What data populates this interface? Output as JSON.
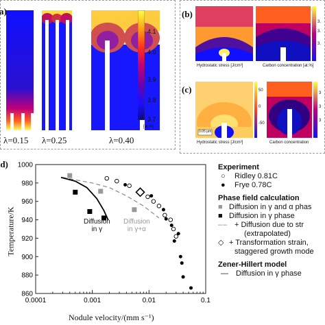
{
  "panel_a": {
    "label": "a)",
    "lambda_labels": [
      "λ=0.15",
      "λ=0.25",
      "λ=0.40"
    ],
    "colorbar": {
      "ticks": [
        "4.1",
        "4.0",
        "3.9",
        "3.8",
        "3.7"
      ],
      "unit": "[at.%]",
      "colors": [
        "#ffff40",
        "#ff9a10",
        "#ff2a20",
        "#c0007a",
        "#6a00b0",
        "#1a10ff",
        "#0a0a80"
      ]
    }
  },
  "panel_b": {
    "label": "(b)",
    "left_caption": "Hydrostatic stress  [J/cm³]",
    "right_caption": "Carbon concentration  [at.%]",
    "cb_ticks": [
      "3.",
      "3.",
      "3."
    ]
  },
  "panel_c": {
    "label": "(c)",
    "left_caption": "Hydrostatic stress  [J/cm³]",
    "right_caption": "Carbon concentration",
    "scale_bar": "0.05 µm",
    "cb_ticks": [
      "50",
      "0",
      "-50"
    ],
    "cb_ticks_right": [
      "3",
      "3",
      "3"
    ]
  },
  "panel_d": {
    "label": "(d)",
    "annotations": {
      "diffusion_gamma": [
        "Diffusion",
        "in γ"
      ],
      "diffusion_gamma_alpha": [
        "Diffusion",
        "in γ+α"
      ]
    },
    "legend": {
      "experiment_title": "Experiment",
      "ridley": "Ridley 0.81C",
      "frye": "Frye 0.78C",
      "pf_title": "Phase field calculation",
      "pf_gamma_alpha": "Diffusion in γ and α phas",
      "pf_gamma": "Diffusion in γ phase",
      "pf_stress_1": "+ Diffusion due to str",
      "pf_stress_2": "(extrapolated)",
      "pf_transform_1": "+ Transformation strain,",
      "pf_transform_2": "staggered growth mode",
      "zh_title": "Zener-Hillert model",
      "zh_gamma": "Diffusion in γ phase"
    }
  },
  "chart_data": {
    "type": "scatter",
    "xlabel": "Nodule velocity/(mm s⁻¹)",
    "ylabel": "Temperature/K",
    "xscale": "log",
    "xlim": [
      0.0001,
      0.1
    ],
    "ylim": [
      860,
      1000
    ],
    "xticks": [
      "0.0001",
      "0.001",
      "0.01",
      "0.1"
    ],
    "yticks": [
      "860",
      "880",
      "900",
      "920",
      "940",
      "960",
      "980",
      "1000"
    ],
    "series": [
      {
        "name": "Ridley 0.81C",
        "marker": "open-circle",
        "points": [
          [
            0.0018,
            985
          ],
          [
            0.0027,
            982
          ],
          [
            0.0045,
            977
          ],
          [
            0.0075,
            970
          ],
          [
            0.0095,
            965
          ],
          [
            0.012,
            960
          ],
          [
            0.015,
            955
          ],
          [
            0.019,
            945
          ],
          [
            0.024,
            940
          ],
          [
            0.027,
            930
          ],
          [
            0.03,
            922
          ]
        ]
      },
      {
        "name": "Frye 0.78C",
        "marker": "filled-circle",
        "points": [
          [
            0.0038,
            978
          ],
          [
            0.011,
            966
          ],
          [
            0.018,
            951
          ],
          [
            0.02,
            941
          ],
          [
            0.025,
            934
          ],
          [
            0.033,
            925
          ],
          [
            0.028,
            917
          ],
          [
            0.036,
            900
          ],
          [
            0.038,
            893
          ],
          [
            0.04,
            878
          ],
          [
            0.055,
            866
          ]
        ]
      },
      {
        "name": "Diffusion in γ and α phase",
        "marker": "gray-square",
        "points": [
          [
            0.0004,
            988
          ],
          [
            0.0014,
            971
          ],
          [
            0.0055,
            951
          ]
        ]
      },
      {
        "name": "Diffusion in γ phase",
        "marker": "black-square",
        "points": [
          [
            0.0005,
            970
          ],
          [
            0.0009,
            949
          ],
          [
            0.0016,
            942
          ]
        ]
      },
      {
        "name": "Transformation strain, staggered growth mode",
        "marker": "open-diamond",
        "points": [
          [
            0.007,
            970
          ]
        ]
      }
    ],
    "lines": [
      {
        "name": "Diffusion due to stress (extrapolated)",
        "style": "dashed",
        "points": [
          [
            0.0003,
            986
          ],
          [
            0.001,
            980
          ],
          [
            0.002,
            975
          ],
          [
            0.004,
            966
          ],
          [
            0.008,
            955
          ],
          [
            0.015,
            942
          ]
        ]
      },
      {
        "name": "Zener-Hillert Diffusion in γ phase",
        "style": "solid",
        "points": [
          [
            0.00028,
            986
          ],
          [
            0.0005,
            982
          ],
          [
            0.0008,
            975
          ],
          [
            0.0012,
            963
          ],
          [
            0.0016,
            950
          ],
          [
            0.0019,
            940
          ]
        ]
      }
    ]
  }
}
